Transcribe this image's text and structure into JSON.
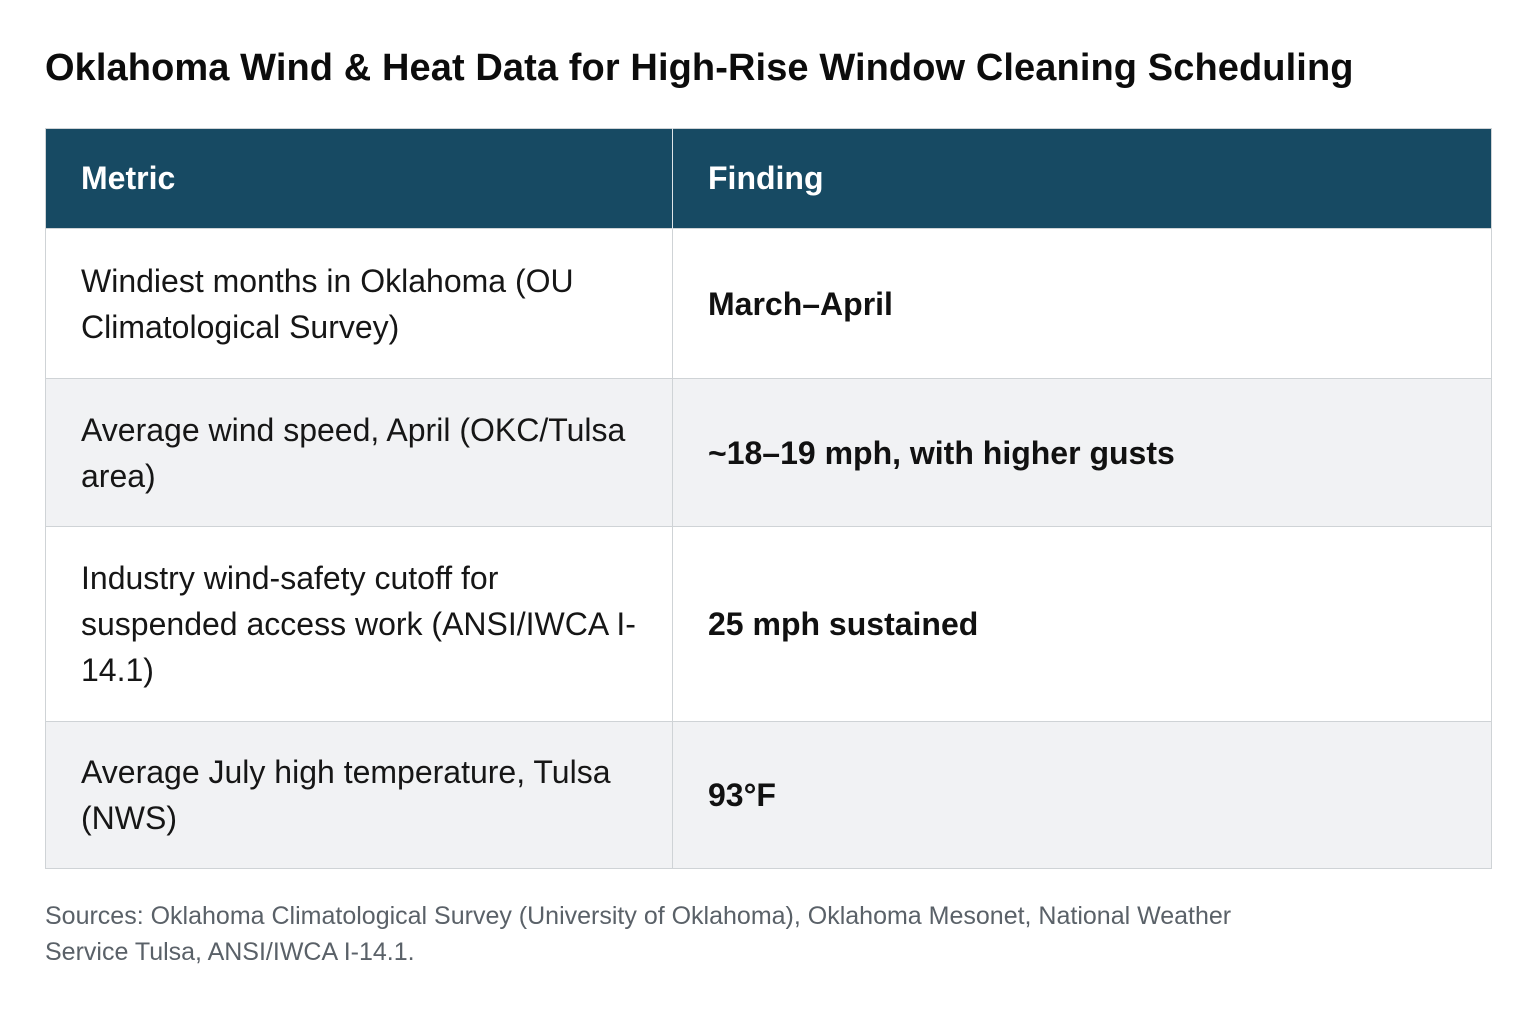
{
  "title": "Oklahoma Wind & Heat Data for High-Rise Window Cleaning Scheduling",
  "table": {
    "headers": {
      "metric": "Metric",
      "finding": "Finding"
    },
    "rows": [
      {
        "metric": "Windiest months in Oklahoma (OU Climatological Survey)",
        "finding": "March–April"
      },
      {
        "metric": "Average wind speed, April (OKC/Tulsa area)",
        "finding": "~18–19 mph, with higher gusts"
      },
      {
        "metric": "Industry wind-safety cutoff for suspended access work (ANSI/IWCA I-14.1)",
        "finding": "25 mph sustained"
      },
      {
        "metric": "Average July high temperature, Tulsa (NWS)",
        "finding": "93°F"
      }
    ]
  },
  "sources": "Sources: Oklahoma Climatological Survey (University of Oklahoma), Oklahoma Mesonet, National Weather Service Tulsa, ANSI/IWCA I-14.1.",
  "colors": {
    "header_background": "#174a63",
    "header_text": "#ffffff",
    "striped_row": "#f1f2f4",
    "border": "#cfd3d6",
    "source_text": "#5a6168"
  }
}
